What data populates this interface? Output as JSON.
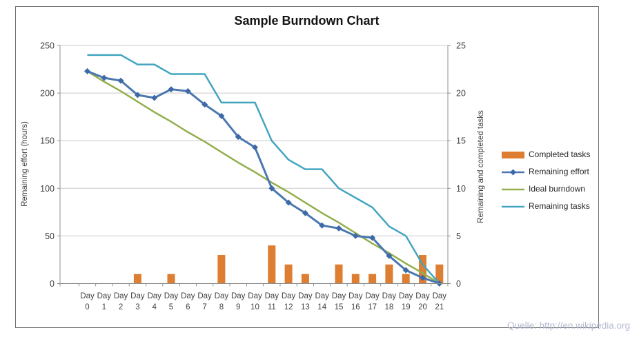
{
  "page": {
    "source_note": "Quelle: http://en.wikipedia.org"
  },
  "chart_data": {
    "type": "combo-bar-line",
    "title": "Sample Burndown Chart",
    "categories": [
      "Day 0",
      "Day 1",
      "Day 2",
      "Day 3",
      "Day 4",
      "Day 5",
      "Day 6",
      "Day 7",
      "Day 8",
      "Day 9",
      "Day 10",
      "Day 11",
      "Day 12",
      "Day 13",
      "Day 14",
      "Day 15",
      "Day 16",
      "Day 17",
      "Day 18",
      "Day 19",
      "Day 20",
      "Day 21"
    ],
    "left_axis": {
      "label": "Remaining effort (hours)",
      "min": 0,
      "max": 250,
      "step": 50,
      "ticks": [
        0,
        50,
        100,
        150,
        200,
        250
      ]
    },
    "right_axis": {
      "label": "Remaining and completed tasks",
      "min": 0,
      "max": 25,
      "step": 5,
      "ticks": [
        0,
        5,
        10,
        15,
        20,
        25
      ]
    },
    "grid": true,
    "legend_position": "right",
    "series": [
      {
        "name": "Completed tasks",
        "type": "bar",
        "axis": "right",
        "color": "#DD7E32",
        "values": [
          0,
          0,
          0,
          1,
          0,
          1,
          0,
          0,
          3,
          0,
          0,
          4,
          2,
          1,
          0,
          2,
          1,
          1,
          2,
          1,
          3,
          2
        ]
      },
      {
        "name": "Remaining effort",
        "type": "line",
        "marker": "diamond",
        "axis": "left",
        "color": "#4A77B0",
        "marker_color": "#3E69A8",
        "values": [
          223,
          216,
          213,
          198,
          195,
          204,
          202,
          188,
          176,
          154,
          143,
          100,
          85,
          74,
          61,
          58,
          50,
          48,
          29,
          14,
          6,
          0
        ]
      },
      {
        "name": "Ideal burndown",
        "type": "line",
        "axis": "left",
        "color": "#93AE4D",
        "values": [
          223,
          212,
          202,
          191,
          180,
          170,
          159,
          149,
          138,
          127,
          117,
          106,
          96,
          85,
          74,
          64,
          53,
          42,
          32,
          21,
          11,
          0
        ]
      },
      {
        "name": "Remaining tasks",
        "type": "line",
        "axis": "right",
        "color": "#42A5C0",
        "values": [
          24,
          24,
          24,
          23,
          23,
          22,
          22,
          22,
          19,
          19,
          19,
          15,
          13,
          12,
          12,
          10,
          9,
          8,
          6,
          5,
          2,
          0
        ]
      }
    ]
  }
}
